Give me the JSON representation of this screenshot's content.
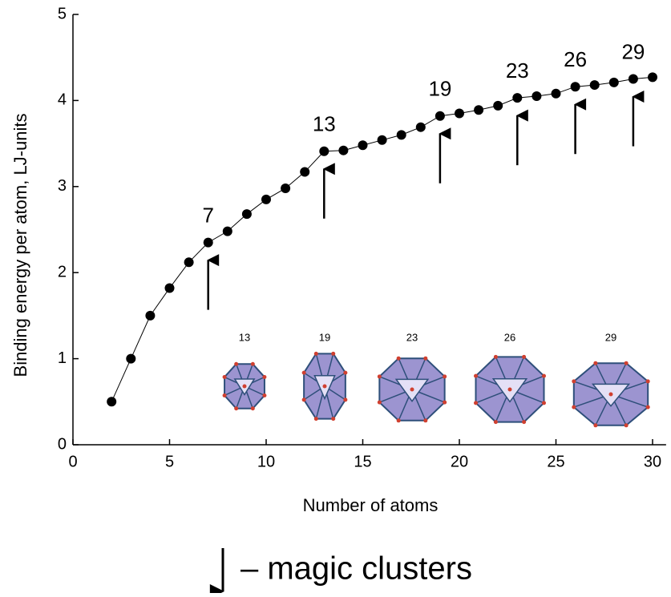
{
  "chart_data": {
    "type": "line",
    "x_label": "Number of atoms",
    "y_label": "Binding energy per atom, LJ-units",
    "x": [
      2,
      3,
      4,
      5,
      6,
      7,
      8,
      9,
      10,
      11,
      12,
      13,
      14,
      15,
      16,
      17,
      18,
      19,
      20,
      21,
      22,
      23,
      24,
      25,
      26,
      27,
      28,
      29,
      30
    ],
    "series": [
      {
        "color": "#000000",
        "values": [
          0.5,
          1.0,
          1.5,
          1.82,
          2.12,
          2.35,
          2.48,
          2.68,
          2.85,
          2.98,
          3.17,
          3.41,
          3.42,
          3.48,
          3.54,
          3.6,
          3.69,
          3.82,
          3.85,
          3.89,
          3.94,
          4.03,
          4.05,
          4.08,
          4.16,
          4.18,
          4.21,
          4.25,
          4.27
        ]
      }
    ],
    "xlim": [
      0,
      30.7
    ],
    "ylim": [
      0,
      5
    ],
    "xticks": [
      0,
      5,
      10,
      15,
      20,
      25,
      30
    ],
    "yticks": [
      0,
      1,
      2,
      3,
      4,
      5
    ],
    "magic_clusters": [
      7,
      13,
      19,
      23,
      26,
      29
    ],
    "inset_labels": [
      "13",
      "19",
      "23",
      "26",
      "29"
    ],
    "legend": "– magic clusters"
  }
}
